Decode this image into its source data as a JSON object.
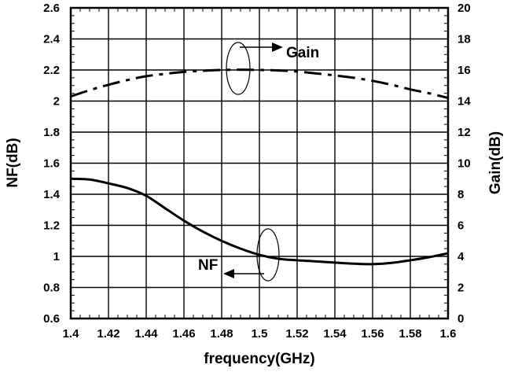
{
  "chart_data": {
    "type": "line",
    "xlabel": "frequency(GHz)",
    "ylabel_left": "NF(dB)",
    "ylabel_right": "Gain(dB)",
    "xlim": [
      1.4,
      1.6
    ],
    "ylim_left": [
      0.6,
      2.6
    ],
    "ylim_right": [
      0,
      20
    ],
    "grid": true,
    "x_ticks": [
      "1.4",
      "1.42",
      "1.44",
      "1.46",
      "1.48",
      "1.5",
      "1.52",
      "1.54",
      "1.56",
      "1.58",
      "1.6"
    ],
    "y_left_ticks": [
      "0.6",
      "0.8",
      "1",
      "1.2",
      "1.4",
      "1.6",
      "1.8",
      "2",
      "2.2",
      "2.4",
      "2.6"
    ],
    "y_right_ticks": [
      "0",
      "2",
      "4",
      "6",
      "8",
      "10",
      "12",
      "14",
      "16",
      "18",
      "20"
    ],
    "series": [
      {
        "name": "NF",
        "axis": "left",
        "style": "solid",
        "x": [
          1.4,
          1.41,
          1.42,
          1.43,
          1.44,
          1.45,
          1.46,
          1.47,
          1.48,
          1.49,
          1.5,
          1.51,
          1.52,
          1.53,
          1.54,
          1.55,
          1.56,
          1.57,
          1.58,
          1.59,
          1.6
        ],
        "y": [
          1.5,
          1.495,
          1.47,
          1.44,
          1.39,
          1.31,
          1.23,
          1.16,
          1.1,
          1.05,
          1.01,
          0.985,
          0.975,
          0.968,
          0.96,
          0.953,
          0.95,
          0.958,
          0.975,
          0.995,
          1.02
        ]
      },
      {
        "name": "Gain",
        "axis": "right",
        "style": "dash-dot",
        "x": [
          1.4,
          1.41,
          1.42,
          1.43,
          1.44,
          1.45,
          1.46,
          1.47,
          1.48,
          1.49,
          1.5,
          1.51,
          1.52,
          1.53,
          1.54,
          1.55,
          1.56,
          1.57,
          1.58,
          1.59,
          1.6
        ],
        "y": [
          14.3,
          14.7,
          15.05,
          15.35,
          15.6,
          15.75,
          15.88,
          15.95,
          16.0,
          16.02,
          16.0,
          15.97,
          15.9,
          15.78,
          15.65,
          15.5,
          15.3,
          15.05,
          14.75,
          14.5,
          14.2
        ]
      }
    ],
    "annotations": [
      "Gain",
      "NF"
    ]
  }
}
